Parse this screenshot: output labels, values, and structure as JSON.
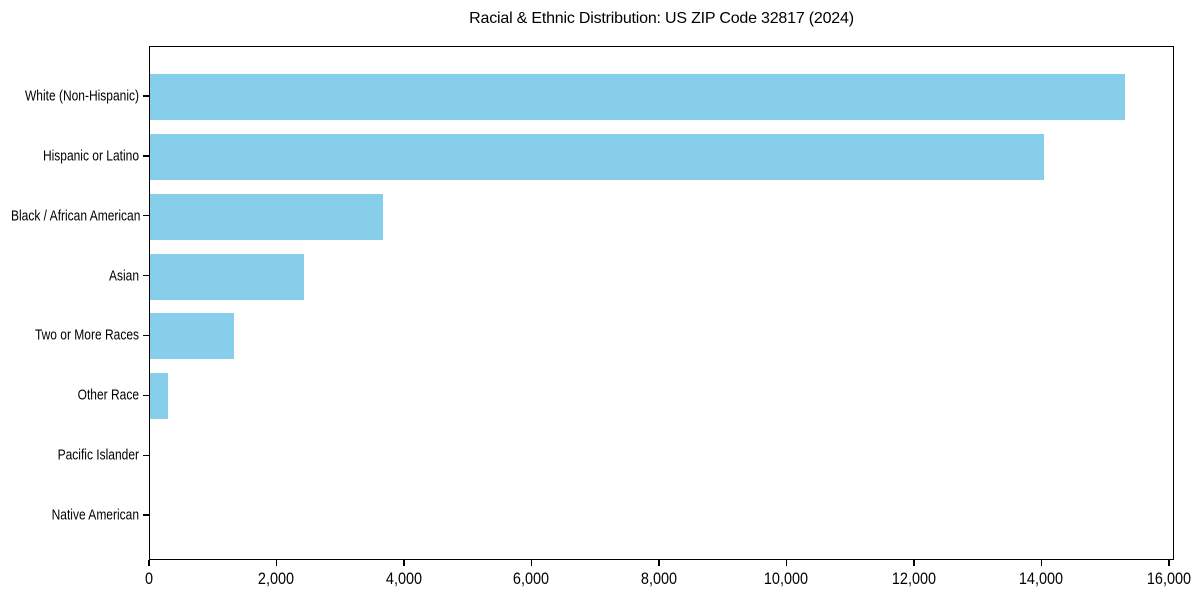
{
  "chart_data": {
    "type": "bar",
    "orientation": "horizontal",
    "title": "Racial & Ethnic Distribution: US ZIP Code 32817 (2024)",
    "categories": [
      "White (Non-Hispanic)",
      "Hispanic or Latino",
      "Black / African American",
      "Asian",
      "Two or More Races",
      "Other Race",
      "Pacific Islander",
      "Native American"
    ],
    "values": [
      15300,
      14020,
      3660,
      2410,
      1320,
      275,
      0,
      0
    ],
    "xlabel": "",
    "ylabel": "",
    "xlim": [
      0,
      16080
    ],
    "x_ticks": [
      0,
      2000,
      4000,
      6000,
      8000,
      10000,
      12000,
      14000,
      16000
    ],
    "x_tick_labels": [
      "0",
      "2,000",
      "4,000",
      "6,000",
      "8,000",
      "10,000",
      "12,000",
      "14,000",
      "16,000"
    ],
    "bar_color": "#87CEEB",
    "grid": false,
    "legend": null
  },
  "colors": {
    "bar": "#87CEEB",
    "spine": "#000000",
    "text": "#000000",
    "background": "#ffffff"
  }
}
